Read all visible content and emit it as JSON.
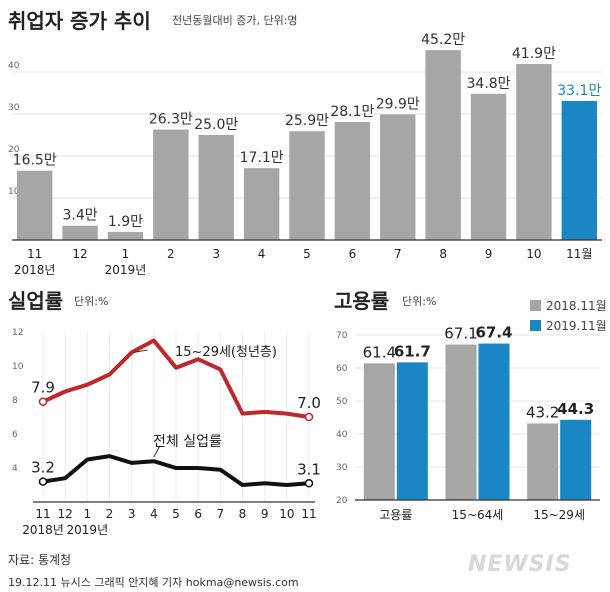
{
  "chart_data": [
    {
      "type": "bar",
      "title": "취업자 증가 추이",
      "subtitle": "전년동월대비 증가, 단위:명",
      "categories": [
        "11",
        "12",
        "1",
        "2",
        "3",
        "4",
        "5",
        "6",
        "7",
        "8",
        "9",
        "10",
        "11월"
      ],
      "year_labels": [
        "2018년",
        "",
        "2019년",
        "",
        "",
        "",
        "",
        "",
        "",
        "",
        "",
        "",
        ""
      ],
      "values": [
        16.5,
        3.4,
        1.9,
        26.3,
        25.0,
        17.1,
        25.9,
        28.1,
        29.9,
        45.2,
        34.8,
        41.9,
        33.1
      ],
      "value_labels": [
        "16.5만",
        "3.4만",
        "1.9만",
        "26.3만",
        "25.0만",
        "17.1만",
        "25.9만",
        "28.1만",
        "29.9만",
        "45.2만",
        "34.8만",
        "41.9만",
        "33.1만"
      ],
      "highlight_index": 12,
      "ylim": [
        0,
        50
      ],
      "yticks": [
        "10",
        "20",
        "30",
        "40"
      ],
      "colors": {
        "bar": "#a6a6a6",
        "highlight": "#1a86c3",
        "highlight_label": "#1a86c3"
      }
    },
    {
      "type": "line",
      "title": "실업률",
      "subtitle": "단위:%",
      "x": [
        "11",
        "12",
        "1",
        "2",
        "3",
        "4",
        "5",
        "6",
        "7",
        "8",
        "9",
        "10",
        "11"
      ],
      "year_labels": [
        "2018년",
        "",
        "2019년",
        "",
        "",
        "",
        "",
        "",
        "",
        "",
        "",
        "",
        ""
      ],
      "ylim": [
        2,
        12
      ],
      "yticks": [
        "4",
        "6",
        "8",
        "10",
        "12"
      ],
      "series": [
        {
          "name": "15~29세(청년층)",
          "values": [
            7.9,
            8.5,
            8.9,
            9.5,
            10.8,
            11.5,
            9.9,
            10.4,
            9.8,
            7.2,
            7.3,
            7.2,
            7.0
          ],
          "start_label": "7.9",
          "end_label": "7.0",
          "color": "#c0272d"
        },
        {
          "name": "전체 실업률",
          "values": [
            3.2,
            3.4,
            4.5,
            4.7,
            4.3,
            4.4,
            4.0,
            4.0,
            3.9,
            3.0,
            3.1,
            3.0,
            3.1
          ],
          "start_label": "3.2",
          "end_label": "3.1",
          "color": "#111111"
        }
      ]
    },
    {
      "type": "bar",
      "title": "고용률",
      "subtitle": "단위:%",
      "categories": [
        "고용률",
        "15~64세",
        "15~29세"
      ],
      "ylim": [
        20,
        70
      ],
      "yticks": [
        "20",
        "30",
        "40",
        "50",
        "60",
        "70"
      ],
      "series": [
        {
          "name": "2018.11월",
          "values": [
            61.4,
            67.1,
            43.2
          ],
          "labels": [
            "61.4",
            "67.1",
            "43.2"
          ],
          "color": "#a6a6a6"
        },
        {
          "name": "2019.11월",
          "values": [
            61.7,
            67.4,
            44.3
          ],
          "labels": [
            "61.7",
            "67.4",
            "44.3"
          ],
          "color": "#1a86c3"
        }
      ]
    }
  ],
  "footer": {
    "source": "자료: 통계청",
    "credit": "19.12.11 뉴시스 그래픽 안지혜 기자 hokma@newsis.com",
    "logo": "NEWSIS"
  }
}
